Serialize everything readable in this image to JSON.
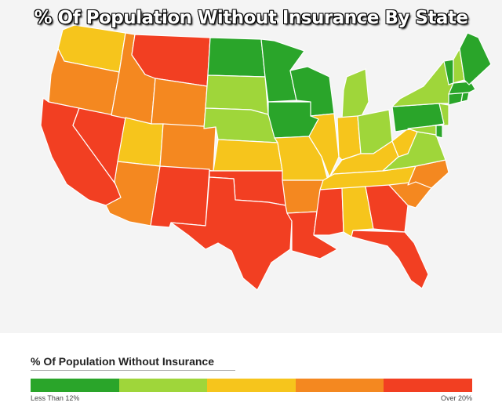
{
  "map": {
    "title": "% Of Population Without Insurance By State",
    "palette": {
      "green": "#2aa52a",
      "lime": "#9fd63a",
      "yellow": "#f6c51c",
      "orange": "#f48820",
      "red": "#f23f22"
    },
    "states": [
      {
        "abbr": "WA",
        "category": "yellow"
      },
      {
        "abbr": "OR",
        "category": "orange"
      },
      {
        "abbr": "CA",
        "category": "red"
      },
      {
        "abbr": "NV",
        "category": "red"
      },
      {
        "abbr": "ID",
        "category": "orange"
      },
      {
        "abbr": "MT",
        "category": "red"
      },
      {
        "abbr": "WY",
        "category": "orange"
      },
      {
        "abbr": "UT",
        "category": "yellow"
      },
      {
        "abbr": "AZ",
        "category": "orange"
      },
      {
        "abbr": "CO",
        "category": "orange"
      },
      {
        "abbr": "NM",
        "category": "red"
      },
      {
        "abbr": "ND",
        "category": "green"
      },
      {
        "abbr": "SD",
        "category": "lime"
      },
      {
        "abbr": "NE",
        "category": "lime"
      },
      {
        "abbr": "KS",
        "category": "yellow"
      },
      {
        "abbr": "OK",
        "category": "red"
      },
      {
        "abbr": "TX",
        "category": "red"
      },
      {
        "abbr": "MN",
        "category": "green"
      },
      {
        "abbr": "IA",
        "category": "green"
      },
      {
        "abbr": "MO",
        "category": "yellow"
      },
      {
        "abbr": "AR",
        "category": "orange"
      },
      {
        "abbr": "LA",
        "category": "red"
      },
      {
        "abbr": "WI",
        "category": "green"
      },
      {
        "abbr": "IL",
        "category": "yellow"
      },
      {
        "abbr": "MI",
        "category": "lime"
      },
      {
        "abbr": "IN",
        "category": "yellow"
      },
      {
        "abbr": "OH",
        "category": "lime"
      },
      {
        "abbr": "KY",
        "category": "yellow"
      },
      {
        "abbr": "TN",
        "category": "yellow"
      },
      {
        "abbr": "MS",
        "category": "red"
      },
      {
        "abbr": "AL",
        "category": "yellow"
      },
      {
        "abbr": "GA",
        "category": "red"
      },
      {
        "abbr": "FL",
        "category": "red"
      },
      {
        "abbr": "SC",
        "category": "orange"
      },
      {
        "abbr": "NC",
        "category": "orange"
      },
      {
        "abbr": "VA",
        "category": "lime"
      },
      {
        "abbr": "WV",
        "category": "yellow"
      },
      {
        "abbr": "PA",
        "category": "green"
      },
      {
        "abbr": "NY",
        "category": "lime"
      },
      {
        "abbr": "MD",
        "category": "lime"
      },
      {
        "abbr": "DE",
        "category": "green"
      },
      {
        "abbr": "NJ",
        "category": "lime"
      },
      {
        "abbr": "CT",
        "category": "green"
      },
      {
        "abbr": "RI",
        "category": "green"
      },
      {
        "abbr": "MA",
        "category": "green"
      },
      {
        "abbr": "VT",
        "category": "green"
      },
      {
        "abbr": "NH",
        "category": "lime"
      },
      {
        "abbr": "ME",
        "category": "green"
      }
    ]
  },
  "legend": {
    "title": "% Of Population Without Insurance",
    "low_label": "Less Than 12%",
    "high_label": "Over 20%",
    "swatches": [
      "#2aa52a",
      "#9fd63a",
      "#f6c51c",
      "#f48820",
      "#f23f22"
    ]
  }
}
